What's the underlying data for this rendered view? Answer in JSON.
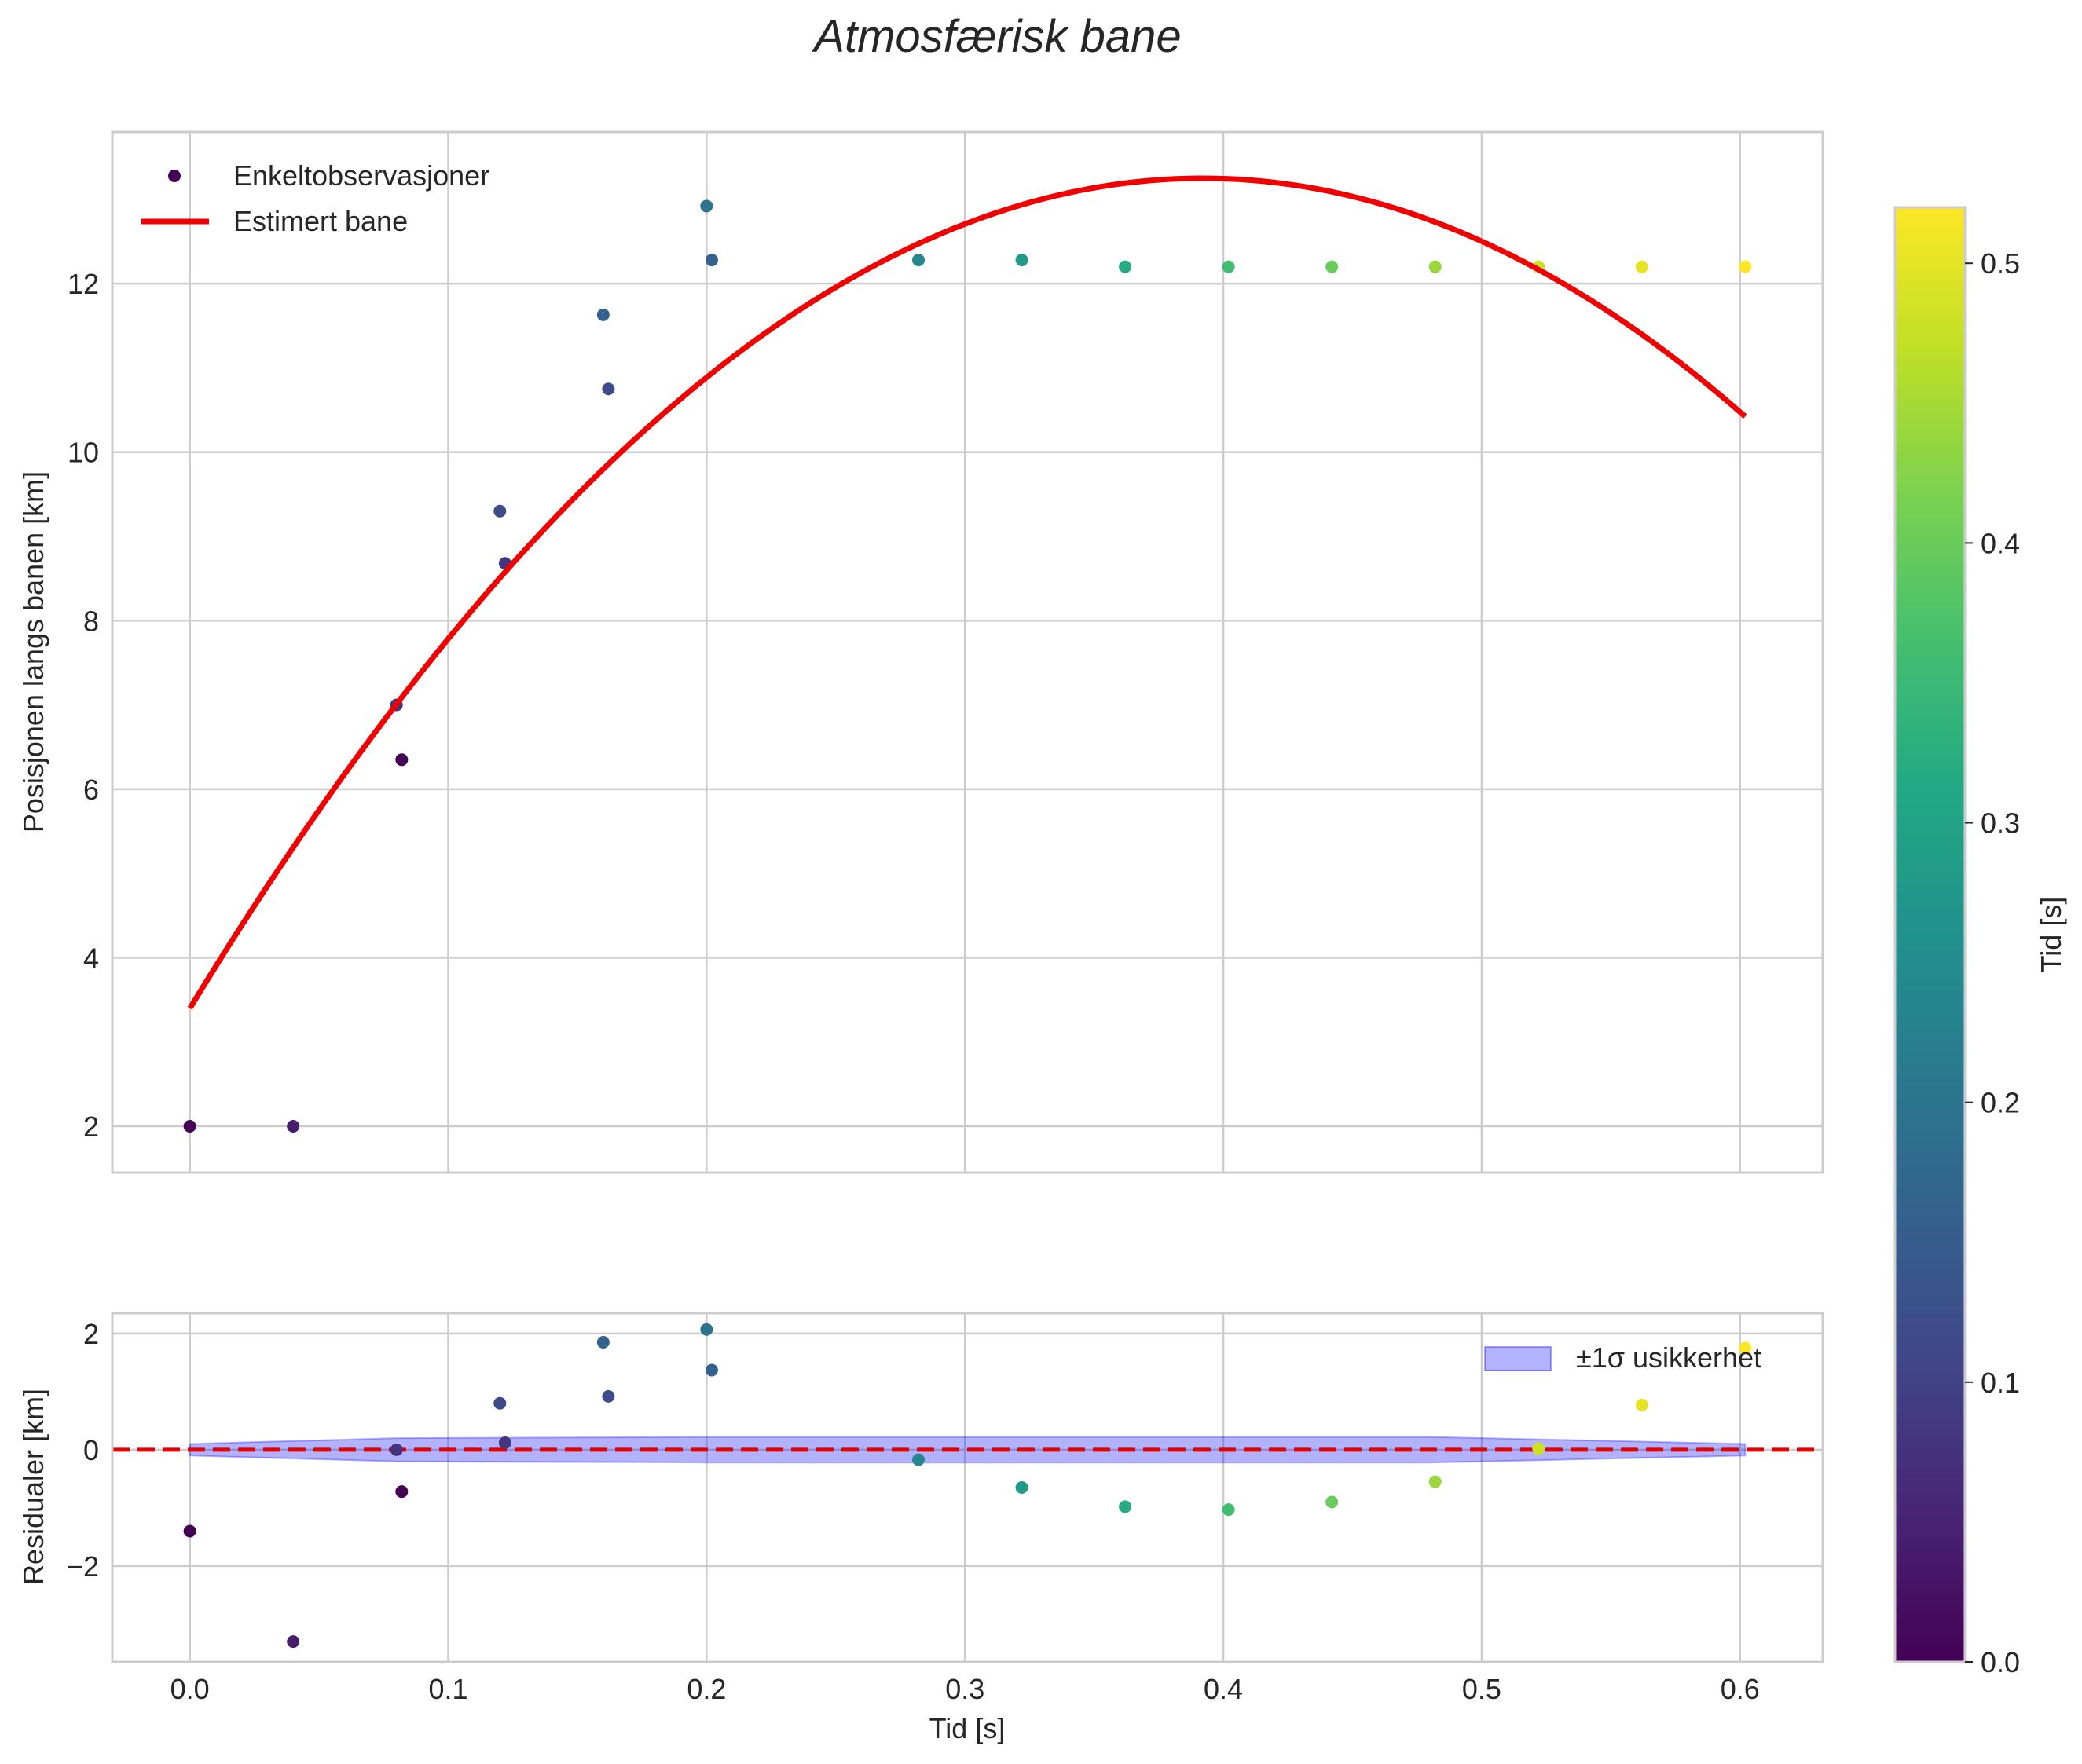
{
  "chart_data": {
    "type": "scatter",
    "title": "Atmosfærisk bane",
    "top_panel": {
      "ylabel": "Posisjonen langs banen [km]",
      "ylim": [
        1.45,
        13.8
      ],
      "xlim": [
        -0.03,
        0.632
      ],
      "yticks": [
        2,
        4,
        6,
        8,
        10,
        12
      ],
      "tick_labels": [
        "2",
        "4",
        "6",
        "8",
        "10",
        "12"
      ],
      "grid": true,
      "legend_position": "top-left",
      "legend": [
        {
          "label": "Enkeltobservasjoner",
          "kind": "marker"
        },
        {
          "label": "Estimert bane",
          "kind": "line"
        }
      ],
      "observations": [
        {
          "t": 0.0,
          "pos": 2.0,
          "c": 0.0
        },
        {
          "t": 0.04,
          "pos": 2.0,
          "c": 0.04
        },
        {
          "t": 0.08,
          "pos": 7.0,
          "c": 0.08
        },
        {
          "t": 0.082,
          "pos": 6.35,
          "c": 0.0
        },
        {
          "t": 0.12,
          "pos": 9.3,
          "c": 0.12
        },
        {
          "t": 0.122,
          "pos": 8.68,
          "c": 0.08
        },
        {
          "t": 0.16,
          "pos": 11.63,
          "c": 0.16
        },
        {
          "t": 0.162,
          "pos": 10.75,
          "c": 0.12
        },
        {
          "t": 0.2,
          "pos": 12.92,
          "c": 0.2
        },
        {
          "t": 0.202,
          "pos": 12.28,
          "c": 0.16
        },
        {
          "t": 0.282,
          "pos": 12.28,
          "c": 0.24
        },
        {
          "t": 0.322,
          "pos": 12.28,
          "c": 0.28
        },
        {
          "t": 0.362,
          "pos": 12.2,
          "c": 0.32
        },
        {
          "t": 0.402,
          "pos": 12.2,
          "c": 0.36
        },
        {
          "t": 0.442,
          "pos": 12.2,
          "c": 0.4
        },
        {
          "t": 0.482,
          "pos": 12.2,
          "c": 0.44
        },
        {
          "t": 0.522,
          "pos": 12.2,
          "c": 0.48
        },
        {
          "t": 0.562,
          "pos": 12.2,
          "c": 0.5
        },
        {
          "t": 0.602,
          "pos": 12.2,
          "c": 0.52
        }
      ],
      "fit_curve": {
        "label": "Estimert bane",
        "color": "#f00000",
        "t_start": 0.0,
        "t_end": 0.602,
        "peak_t": 0.392,
        "peak_value": 13.25,
        "start_value": 3.4
      }
    },
    "bottom_panel": {
      "xlabel": "Tid [s]",
      "ylabel": "Residualer [km]",
      "ylim": [
        -3.65,
        2.35
      ],
      "yticks": [
        -2,
        0,
        2
      ],
      "tick_labels": [
        "−2",
        "0",
        "2"
      ],
      "xticks": [
        0.0,
        0.1,
        0.2,
        0.3,
        0.4,
        0.5,
        0.6
      ],
      "xtick_labels": [
        "0.0",
        "0.1",
        "0.2",
        "0.3",
        "0.4",
        "0.5",
        "0.6"
      ],
      "legend_position": "top-right",
      "legend": [
        {
          "label": "±1σ usikkerhet",
          "kind": "patch"
        }
      ],
      "residuals": [
        {
          "t": 0.0,
          "r": -1.4,
          "c": 0.0
        },
        {
          "t": 0.04,
          "r": -3.3,
          "c": 0.04
        },
        {
          "t": 0.08,
          "r": 0.0,
          "c": 0.08
        },
        {
          "t": 0.082,
          "r": -0.72,
          "c": 0.0
        },
        {
          "t": 0.12,
          "r": 0.8,
          "c": 0.12
        },
        {
          "t": 0.122,
          "r": 0.12,
          "c": 0.08
        },
        {
          "t": 0.16,
          "r": 1.85,
          "c": 0.16
        },
        {
          "t": 0.162,
          "r": 0.92,
          "c": 0.12
        },
        {
          "t": 0.2,
          "r": 2.07,
          "c": 0.2
        },
        {
          "t": 0.202,
          "r": 1.37,
          "c": 0.16
        },
        {
          "t": 0.282,
          "r": -0.17,
          "c": 0.24
        },
        {
          "t": 0.322,
          "r": -0.65,
          "c": 0.28
        },
        {
          "t": 0.362,
          "r": -0.98,
          "c": 0.32
        },
        {
          "t": 0.402,
          "r": -1.03,
          "c": 0.36
        },
        {
          "t": 0.442,
          "r": -0.9,
          "c": 0.4
        },
        {
          "t": 0.482,
          "r": -0.55,
          "c": 0.44
        },
        {
          "t": 0.522,
          "r": 0.02,
          "c": 0.48
        },
        {
          "t": 0.562,
          "r": 0.77,
          "c": 0.5
        },
        {
          "t": 0.602,
          "r": 1.75,
          "c": 0.52
        }
      ],
      "uncertainty_band": {
        "t": [
          0.0,
          0.08,
          0.2,
          0.3,
          0.4,
          0.48,
          0.522,
          0.602
        ],
        "sigma": [
          0.1,
          0.2,
          0.22,
          0.22,
          0.22,
          0.22,
          0.18,
          0.1
        ],
        "fill": "#0000ff",
        "fill_opacity": 0.3
      },
      "zero_line_color": "#e00000"
    },
    "colorbar": {
      "label": "Tid [s]",
      "range": [
        0.0,
        0.52
      ],
      "ticks": [
        0.0,
        0.1,
        0.2,
        0.3,
        0.4,
        0.5
      ],
      "tick_labels": [
        "0.0",
        "0.1",
        "0.2",
        "0.3",
        "0.4",
        "0.5"
      ],
      "colormap": "viridis"
    }
  }
}
